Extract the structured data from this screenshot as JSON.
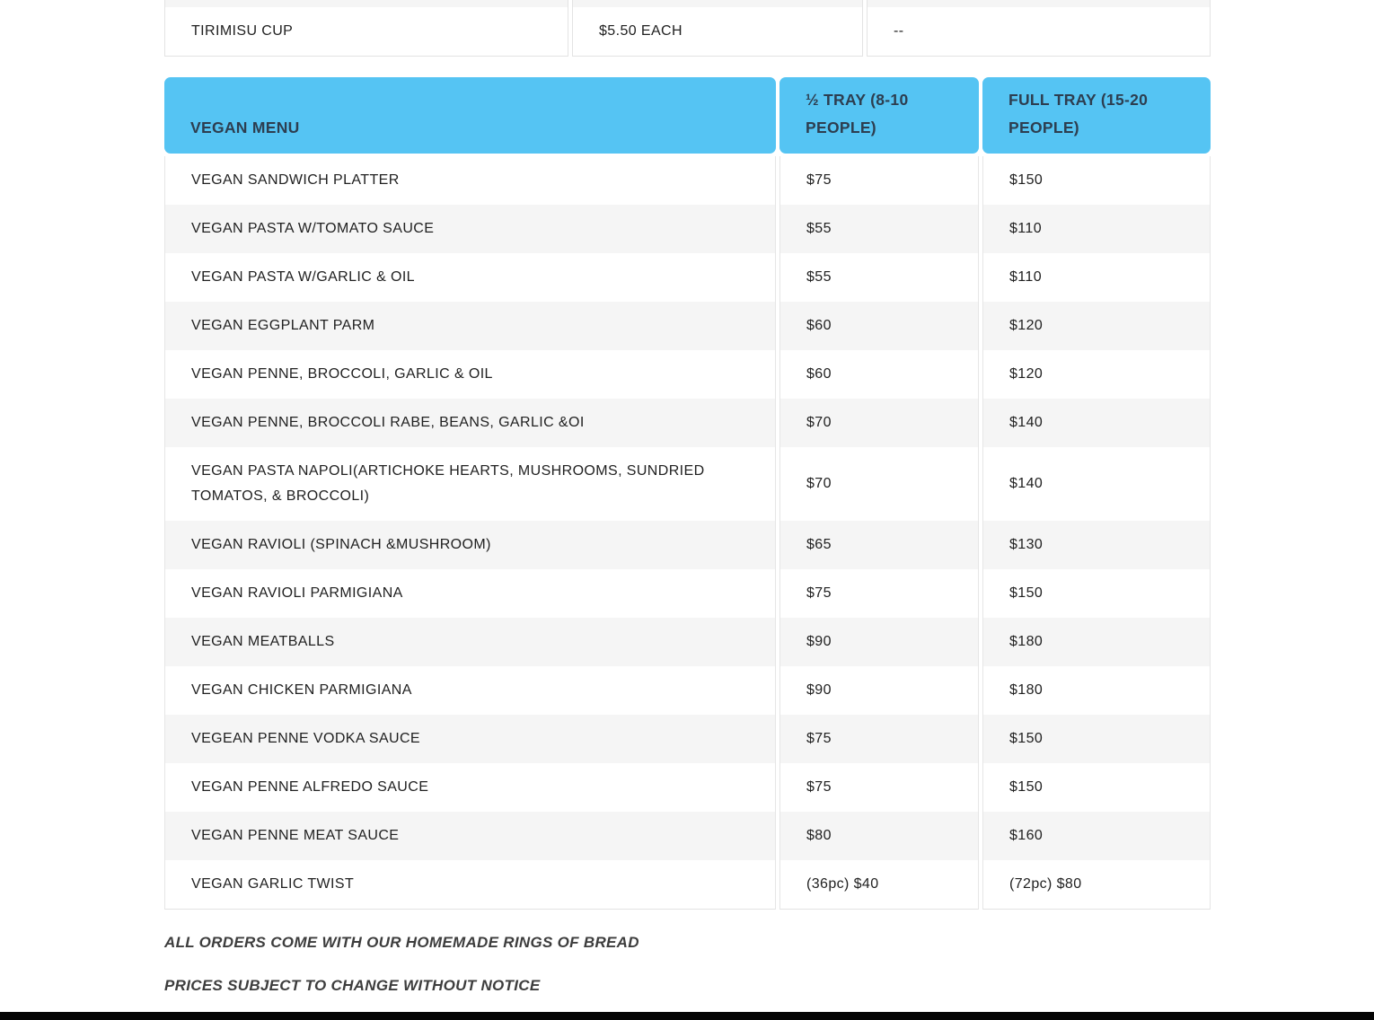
{
  "page": {
    "background": "#ffffff",
    "accent_blue": "#55c4f3",
    "header_text_color": "#2d3e50",
    "zebra_gray": "#f5f5f5",
    "border_gray": "#e3e3e3",
    "bottom_bar_color": "#040404"
  },
  "dessert_table_partial": {
    "row": {
      "name": "TIRIMISU CUP",
      "price": "$5.50 EACH",
      "note": "--"
    }
  },
  "vegan_table": {
    "headers": {
      "menu": "VEGAN MENU",
      "half_tray": "½ TRAY (8-10 PEOPLE)",
      "full_tray": "FULL TRAY (15-20 PEOPLE)"
    },
    "rows": [
      {
        "name": "VEGAN SANDWICH PLATTER",
        "half": "$75",
        "full": "$150"
      },
      {
        "name": "VEGAN PASTA W/TOMATO SAUCE",
        "half": "$55",
        "full": "$110"
      },
      {
        "name": "VEGAN PASTA W/GARLIC & OIL",
        "half": "$55",
        "full": "$110"
      },
      {
        "name": "VEGAN EGGPLANT PARM",
        "half": "$60",
        "full": "$120"
      },
      {
        "name": "VEGAN PENNE, BROCCOLI, GARLIC & OIL",
        "half": "$60",
        "full": "$120"
      },
      {
        "name": "VEGAN PENNE, BROCCOLI RABE, BEANS, GARLIC &OI",
        "half": "$70",
        "full": "$140"
      },
      {
        "name": "VEGAN PASTA NAPOLI(ARTICHOKE HEARTS, MUSHROOMS, SUNDRIED TOMATOS, & BROCCOLI)",
        "half": "$70",
        "full": "$140"
      },
      {
        "name": "VEGAN RAVIOLI (SPINACH &MUSHROOM)",
        "half": "$65",
        "full": "$130"
      },
      {
        "name": "VEGAN RAVIOLI PARMIGIANA",
        "half": "$75",
        "full": "$150"
      },
      {
        "name": "VEGAN MEATBALLS",
        "half": "$90",
        "full": "$180"
      },
      {
        "name": "VEGAN CHICKEN PARMIGIANA",
        "half": "$90",
        "full": "$180"
      },
      {
        "name": "VEGEAN PENNE VODKA SAUCE",
        "half": "$75",
        "full": "$150"
      },
      {
        "name": "VEGAN PENNE ALFREDO SAUCE",
        "half": "$75",
        "full": "$150"
      },
      {
        "name": "VEGAN PENNE MEAT SAUCE",
        "half": "$80",
        "full": "$160"
      },
      {
        "name": "VEGAN GARLIC TWIST",
        "half": "(36pc) $40",
        "full": "(72pc) $80"
      }
    ]
  },
  "footnotes": {
    "bread": "ALL ORDERS COME WITH OUR HOMEMADE RINGS OF BREAD",
    "prices": "PRICES SUBJECT TO CHANGE WITHOUT NOTICE"
  }
}
